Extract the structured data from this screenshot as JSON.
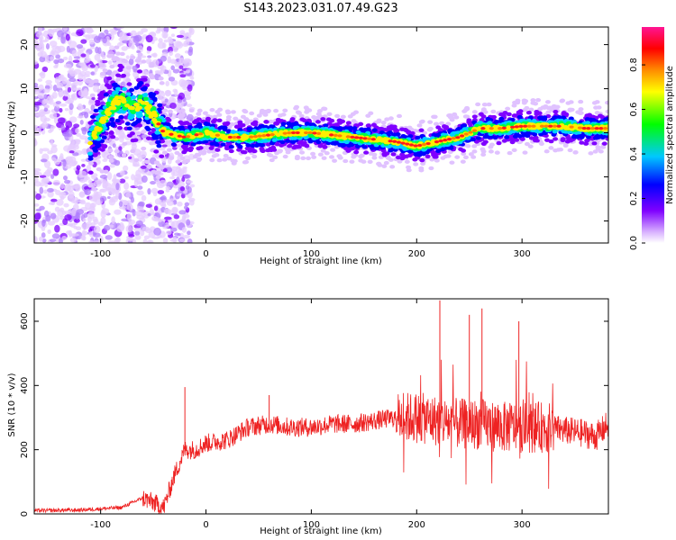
{
  "title": "S143.2023.031.07.49.G23",
  "chart_data": [
    {
      "type": "heatmap",
      "xlabel": "Height of straight line (km)",
      "ylabel": "Frequency (Hz)",
      "xlim": [
        -163,
        382
      ],
      "ylim": [
        -25,
        24
      ],
      "xticks": [
        -100,
        0,
        100,
        200,
        300
      ],
      "yticks": [
        -20,
        -10,
        0,
        10,
        20
      ],
      "colorbar": {
        "label": "Normalized spectral amplitude",
        "range": [
          0,
          0.97
        ],
        "ticks": [
          "0.0",
          "0.2",
          "0.4",
          "0.6",
          "0.8"
        ],
        "colors": [
          "#ffffff",
          "#7f00ff",
          "#0000ff",
          "#00c0ff",
          "#00ff00",
          "#ffff00",
          "#ff8000",
          "#ff0000",
          "#ff1493"
        ]
      },
      "ridge": {
        "x": [
          -110,
          -100,
          -90,
          -80,
          -70,
          -60,
          -50,
          -40,
          -20,
          0,
          20,
          40,
          60,
          80,
          100,
          120,
          140,
          160,
          180,
          200,
          220,
          240,
          260,
          280,
          300,
          320,
          340,
          360,
          382
        ],
        "y": [
          -2,
          2,
          6,
          8,
          5,
          7,
          4,
          0,
          -1,
          0,
          -1,
          -1,
          -0.5,
          0,
          0,
          -0.5,
          -1,
          -1.5,
          -2,
          -3,
          -2,
          -1,
          1,
          1,
          1.5,
          1.5,
          1.5,
          1,
          1
        ]
      }
    },
    {
      "type": "line",
      "xlabel": "Height of straight line (km)",
      "ylabel": "SNR (10 * v/v)",
      "xlim": [
        -163,
        382
      ],
      "ylim": [
        0,
        670
      ],
      "xticks": [
        -100,
        0,
        100,
        200,
        300
      ],
      "yticks": [
        0,
        200,
        400,
        600
      ],
      "color": "#ee2222",
      "baseline": {
        "x": [
          -163,
          -120,
          -80,
          -60,
          -40,
          -30,
          -20,
          -10,
          0,
          20,
          40,
          60,
          80,
          100,
          120,
          140,
          160,
          180,
          200,
          220,
          240,
          260,
          280,
          300,
          320,
          340,
          360,
          370,
          382
        ],
        "y": [
          10,
          12,
          20,
          50,
          20,
          120,
          200,
          200,
          220,
          230,
          270,
          280,
          270,
          270,
          280,
          280,
          290,
          300,
          300,
          290,
          280,
          280,
          270,
          270,
          270,
          260,
          250,
          240,
          280
        ]
      },
      "spikes": {
        "x": [
          -20,
          60,
          222,
          250,
          262,
          297
        ],
        "y": [
          395,
          370,
          665,
          620,
          640,
          600
        ]
      }
    }
  ]
}
